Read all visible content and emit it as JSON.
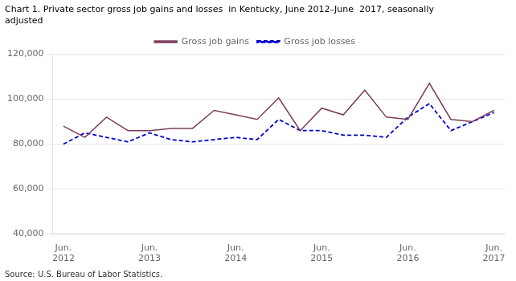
{
  "chart_data": {
    "type": "line",
    "title": "Chart 1. Private sector gross job gains and losses  in Kentucky, June 2012–June  2017, seasonally\nadjusted",
    "annotations": [
      "Source: U.S. Bureau of Labor Statistics."
    ],
    "categories": [
      "Jun.\n2012",
      null,
      null,
      null,
      "Jun.\n2013",
      null,
      null,
      null,
      "Jun.\n2014",
      null,
      null,
      null,
      "Jun.\n2015",
      null,
      null,
      null,
      "Jun.\n2016",
      null,
      null,
      null,
      "Jun.\n2017"
    ],
    "series": [
      {
        "name": "Gross job gains",
        "color": "#7B3F5E",
        "line_style": "solid",
        "marker": "none",
        "values": [
          88000,
          83000,
          92000,
          86000,
          86000,
          87000,
          87000,
          95000,
          93000,
          91000,
          100500,
          86000,
          96000,
          93000,
          104000,
          92000,
          91000,
          107000,
          91000,
          90000,
          95000
        ]
      },
      {
        "name": "Gross job losses",
        "color": "#0000CC",
        "line_style": "dashed",
        "marker": "none",
        "values": [
          80000,
          85000,
          83000,
          81000,
          85000,
          82000,
          81000,
          82000,
          83000,
          82000,
          91000,
          86000,
          86000,
          84000,
          84000,
          83000,
          92000,
          98000,
          86000,
          90000,
          94000
        ]
      }
    ],
    "ylim": [
      40000,
      120000
    ],
    "yticks": [
      {
        "value": 40000,
        "label": "40,000"
      },
      {
        "value": 60000,
        "label": "60,000"
      },
      {
        "value": 80000,
        "label": "80,000"
      },
      {
        "value": 100000,
        "label": "100,000"
      },
      {
        "value": 120000,
        "label": "120,000"
      }
    ],
    "grid": true,
    "legend": "top"
  }
}
